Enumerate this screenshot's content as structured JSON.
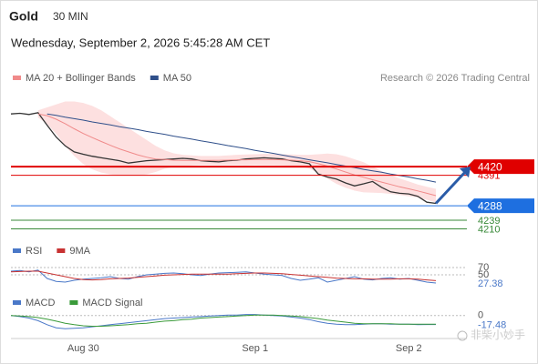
{
  "chart_data": [
    {
      "type": "line",
      "title": "Gold",
      "subtitle": "30 MIN",
      "date": "Wednesday, September 2, 2026 5:45:28 AM CET",
      "source": "Research © 2026 Trading Central",
      "watermark": "非柴小妙手",
      "ylim": [
        4190,
        4660
      ],
      "color": "#333333",
      "values": [
        4598,
        4600,
        4596,
        4602,
        4560,
        4520,
        4490,
        4470,
        4462,
        4455,
        4450,
        4445,
        4440,
        4432,
        4436,
        4440,
        4442,
        4444,
        4446,
        4448,
        4446,
        4440,
        4438,
        4436,
        4440,
        4442,
        4446,
        4448,
        4450,
        4448,
        4446,
        4440,
        4436,
        4430,
        4395,
        4385,
        4378,
        4365,
        4355,
        4362,
        4370,
        4350,
        4335,
        4330,
        4328,
        4320,
        4300,
        4296
      ],
      "series": [
        {
          "name": "MA 20 + Bollinger Bands",
          "color": "#f08a8a",
          "values": [
            null,
            null,
            null,
            4598,
            4592,
            4580,
            4565,
            4548,
            4532,
            4518,
            4505,
            4492,
            4480,
            4470,
            4460,
            4452,
            4446,
            4444,
            4442,
            4441,
            4441,
            4441,
            4441,
            4441,
            4442,
            4443,
            4443,
            4444,
            4444,
            4444,
            4443,
            4442,
            4440,
            4437,
            4430,
            4422,
            4412,
            4402,
            4392,
            4384,
            4376,
            4368,
            4360,
            4352,
            4345,
            4338,
            4330,
            4322
          ],
          "upper": [
            null,
            null,
            null,
            4610,
            4620,
            4630,
            4640,
            4640,
            4635,
            4625,
            4610,
            4590,
            4570,
            4550,
            4530,
            4510,
            4490,
            4475,
            4465,
            4460,
            4458,
            4456,
            4456,
            4456,
            4458,
            4460,
            4461,
            4462,
            4463,
            4463,
            4462,
            4461,
            4460,
            4460,
            4462,
            4464,
            4462,
            4455,
            4445,
            4435,
            4420,
            4405,
            4392,
            4380,
            4370,
            4360,
            4352,
            4345
          ],
          "lower": [
            null,
            null,
            null,
            4586,
            4564,
            4530,
            4490,
            4456,
            4429,
            4411,
            4400,
            4394,
            4390,
            4390,
            4390,
            4394,
            4402,
            4413,
            4419,
            4422,
            4424,
            4426,
            4426,
            4426,
            4426,
            4426,
            4425,
            4426,
            4425,
            4425,
            4424,
            4423,
            4420,
            4414,
            4398,
            4380,
            4362,
            4349,
            4339,
            4333,
            4332,
            4331,
            4328,
            4324,
            4320,
            4316,
            4308,
            4299
          ]
        },
        {
          "name": "MA 50",
          "color": "#2f4f8a",
          "values": [
            null,
            null,
            null,
            null,
            4598,
            4593,
            4587,
            4582,
            4577,
            4571,
            4566,
            4561,
            4555,
            4550,
            4545,
            4539,
            4534,
            4529,
            4523,
            4518,
            4513,
            4507,
            4502,
            4497,
            4491,
            4486,
            4481,
            4475,
            4470,
            4465,
            4459,
            4454,
            4449,
            4443,
            4438,
            4433,
            4427,
            4422,
            4417,
            4411,
            4406,
            4401,
            4395,
            4390,
            4385,
            4379,
            4374,
            4368
          ]
        }
      ],
      "levels": [
        {
          "value": 4420,
          "color": "#e00000",
          "boxed": true
        },
        {
          "value": 4391,
          "color": "#e00000",
          "boxed": false
        },
        {
          "value": 4288,
          "color": "#1e6fe0",
          "boxed": true
        },
        {
          "value": 4239,
          "color": "#3a8a3a",
          "boxed": false
        },
        {
          "value": 4210,
          "color": "#3a8a3a",
          "boxed": false
        }
      ]
    },
    {
      "type": "line",
      "ylim": [
        0,
        90
      ],
      "yticks": [
        70,
        50
      ],
      "series": [
        {
          "name": "RSI",
          "color": "#4a78c8",
          "values": [
            60,
            62,
            58,
            63,
            40,
            32,
            30,
            35,
            38,
            40,
            42,
            45,
            40,
            38,
            45,
            50,
            52,
            54,
            55,
            53,
            50,
            48,
            52,
            55,
            56,
            57,
            58,
            55,
            52,
            50,
            48,
            40,
            35,
            38,
            42,
            30,
            35,
            40,
            45,
            38,
            36,
            40,
            42,
            38,
            40,
            35,
            30,
            27.38
          ]
        },
        {
          "name": "9MA",
          "color": "#c83232",
          "values": [
            58,
            59,
            60,
            60,
            55,
            50,
            45,
            40,
            37,
            36,
            37,
            39,
            40,
            41,
            43,
            45,
            47,
            49,
            50,
            51,
            52,
            52,
            52,
            52,
            52,
            53,
            54,
            55,
            55,
            54,
            53,
            51,
            49,
            47,
            45,
            43,
            41,
            40,
            39,
            39,
            38,
            38,
            38,
            39,
            39,
            38,
            36,
            34
          ]
        }
      ]
    },
    {
      "type": "line",
      "ylim": [
        -45,
        12
      ],
      "yticks": [
        0
      ],
      "categories": [
        null,
        null,
        null,
        null,
        null,
        null,
        null,
        null,
        "Aug 30",
        null,
        null,
        null,
        null,
        null,
        null,
        null,
        null,
        null,
        null,
        null,
        null,
        null,
        null,
        null,
        null,
        null,
        null,
        "Sep 1",
        null,
        null,
        null,
        null,
        null,
        null,
        null,
        null,
        null,
        null,
        null,
        null,
        null,
        null,
        null,
        null,
        "Sep 2",
        null,
        null,
        null
      ],
      "series": [
        {
          "name": "MACD",
          "color": "#4a78c8",
          "values": [
            0,
            -2,
            -5,
            -10,
            -18,
            -24,
            -26,
            -25,
            -24,
            -22,
            -20,
            -18,
            -16,
            -14,
            -12,
            -10,
            -8,
            -6,
            -5,
            -4,
            -3,
            -2,
            -1,
            0,
            1,
            1,
            2,
            2,
            1,
            0,
            -1,
            -3,
            -5,
            -8,
            -12,
            -15,
            -17,
            -18,
            -18,
            -17,
            -16,
            -16,
            -17,
            -17,
            -17,
            -18,
            -17.5,
            -17.48
          ]
        },
        {
          "name": "MACD Signal",
          "color": "#3a9a3a",
          "values": [
            0,
            -1,
            -2,
            -4,
            -7,
            -11,
            -15,
            -18,
            -20,
            -21,
            -21,
            -20,
            -19,
            -18,
            -16,
            -15,
            -13,
            -11,
            -10,
            -8,
            -7,
            -5,
            -4,
            -3,
            -2,
            -1,
            0,
            1,
            1,
            1,
            0,
            -1,
            -2,
            -4,
            -6,
            -9,
            -11,
            -13,
            -15,
            -16,
            -16,
            -16,
            -16,
            -17,
            -17,
            -17,
            -17,
            -17
          ]
        }
      ]
    }
  ]
}
